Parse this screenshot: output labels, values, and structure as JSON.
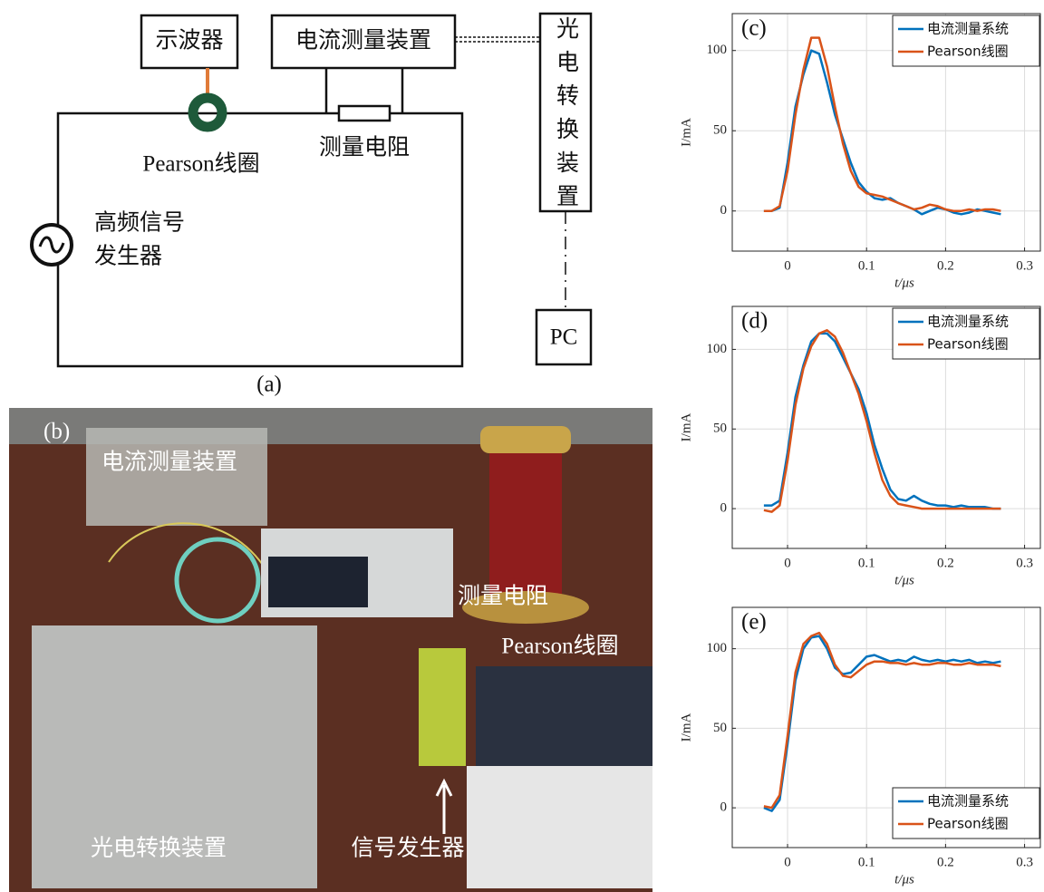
{
  "diagram": {
    "label": "(a)",
    "oscilloscope": "示波器",
    "current_device": "电流测量装置",
    "converter": "光电转换装置",
    "pc": "PC",
    "resistor": "测量电阻",
    "coil": "Pearson线圈",
    "generator": [
      "高频信号",
      "发生器"
    ]
  },
  "photo": {
    "label": "(b)",
    "current_device": "电流测量装置",
    "resistor": "测量电阻",
    "coil": "Pearson线圈",
    "generator": "信号发生器",
    "converter": "光电转换装置"
  },
  "chart_data": [
    {
      "type": "line",
      "title": "(c)",
      "x_label": "t/μs",
      "y_label": "I/mA",
      "x": [
        -0.03,
        -0.02,
        -0.01,
        0,
        0.01,
        0.02,
        0.03,
        0.04,
        0.05,
        0.06,
        0.07,
        0.08,
        0.09,
        0.1,
        0.11,
        0.12,
        0.13,
        0.14,
        0.15,
        0.16,
        0.17,
        0.18,
        0.19,
        0.2,
        0.21,
        0.22,
        0.23,
        0.24,
        0.25,
        0.26,
        0.27
      ],
      "series": [
        {
          "name": "电流测量系统",
          "color": "#0072bd",
          "values": [
            0,
            0,
            2,
            30,
            65,
            85,
            100,
            98,
            80,
            60,
            45,
            30,
            18,
            12,
            8,
            7,
            8,
            5,
            3,
            1,
            -2,
            0,
            2,
            1,
            -1,
            -2,
            -1,
            1,
            0,
            -1,
            -2
          ]
        },
        {
          "name": "Pearson线圈",
          "color": "#d95319",
          "values": [
            0,
            0,
            3,
            25,
            60,
            88,
            108,
            108,
            90,
            65,
            42,
            25,
            15,
            11,
            10,
            9,
            7,
            5,
            3,
            1,
            2,
            4,
            3,
            1,
            0,
            0,
            1,
            0,
            1,
            1,
            0
          ]
        }
      ],
      "xlim": [
        -0.07,
        0.32
      ],
      "ylim": [
        -25,
        123
      ],
      "xticks": [
        0,
        0.1,
        0.2,
        0.3
      ],
      "yticks": [
        0,
        50,
        100
      ],
      "grid": true,
      "legend": "upper right"
    },
    {
      "type": "line",
      "title": "(d)",
      "x_label": "t/μs",
      "y_label": "I/mA",
      "x": [
        -0.03,
        -0.02,
        -0.01,
        0,
        0.01,
        0.02,
        0.03,
        0.04,
        0.05,
        0.06,
        0.07,
        0.08,
        0.09,
        0.1,
        0.11,
        0.12,
        0.13,
        0.14,
        0.15,
        0.16,
        0.17,
        0.18,
        0.19,
        0.2,
        0.21,
        0.22,
        0.23,
        0.24,
        0.25,
        0.26,
        0.27
      ],
      "series": [
        {
          "name": "电流测量系统",
          "color": "#0072bd",
          "values": [
            2,
            2,
            5,
            35,
            70,
            90,
            105,
            110,
            110,
            105,
            95,
            85,
            75,
            60,
            40,
            25,
            12,
            6,
            5,
            8,
            5,
            3,
            2,
            2,
            1,
            2,
            1,
            1,
            1,
            0,
            0
          ]
        },
        {
          "name": "Pearson线圈",
          "color": "#d95319",
          "values": [
            -1,
            -2,
            2,
            30,
            65,
            88,
            102,
            110,
            112,
            108,
            98,
            85,
            72,
            55,
            35,
            18,
            8,
            3,
            2,
            1,
            0,
            0,
            0,
            0,
            0,
            0,
            0,
            0,
            0,
            0,
            0
          ]
        }
      ],
      "xlim": [
        -0.07,
        0.32
      ],
      "ylim": [
        -25,
        127
      ],
      "xticks": [
        0,
        0.1,
        0.2,
        0.3
      ],
      "yticks": [
        0,
        50,
        100
      ],
      "grid": true,
      "legend": "upper right"
    },
    {
      "type": "line",
      "title": "(e)",
      "x_label": "t/μs",
      "y_label": "I/mA",
      "x": [
        -0.03,
        -0.02,
        -0.01,
        0,
        0.01,
        0.02,
        0.03,
        0.04,
        0.05,
        0.06,
        0.07,
        0.08,
        0.09,
        0.1,
        0.11,
        0.12,
        0.13,
        0.14,
        0.15,
        0.16,
        0.17,
        0.18,
        0.19,
        0.2,
        0.21,
        0.22,
        0.23,
        0.24,
        0.25,
        0.26,
        0.27
      ],
      "series": [
        {
          "name": "电流测量系统",
          "color": "#0072bd",
          "values": [
            0,
            -2,
            5,
            40,
            80,
            100,
            107,
            108,
            100,
            88,
            84,
            85,
            90,
            95,
            96,
            94,
            92,
            93,
            92,
            95,
            93,
            92,
            93,
            92,
            93,
            92,
            93,
            91,
            92,
            91,
            92
          ]
        },
        {
          "name": "Pearson线圈",
          "color": "#d95319",
          "values": [
            1,
            0,
            8,
            45,
            85,
            103,
            108,
            110,
            103,
            90,
            83,
            82,
            86,
            90,
            92,
            92,
            91,
            91,
            90,
            91,
            90,
            90,
            91,
            91,
            90,
            90,
            91,
            90,
            90,
            90,
            89
          ]
        }
      ],
      "xlim": [
        -0.07,
        0.32
      ],
      "ylim": [
        -25,
        126
      ],
      "xticks": [
        0,
        0.1,
        0.2,
        0.3
      ],
      "yticks": [
        0,
        50,
        100
      ],
      "grid": true,
      "legend": "lower right"
    }
  ]
}
